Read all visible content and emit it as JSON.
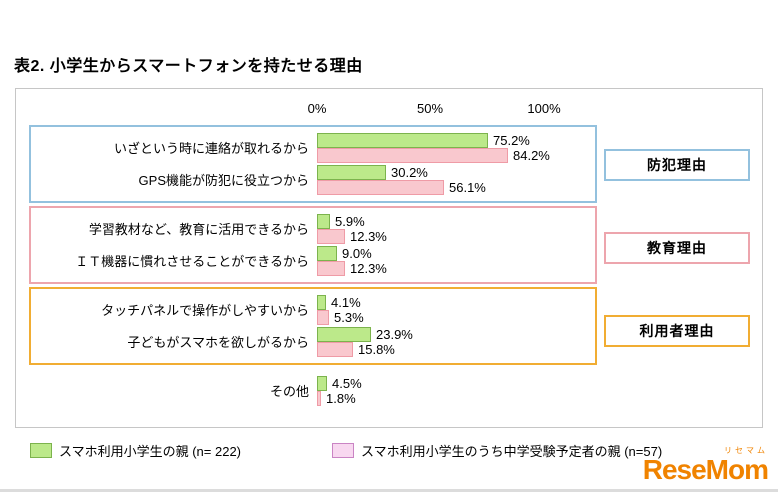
{
  "title": "表2. 小学生からスマートフォンを持たせる理由",
  "chart_data": {
    "type": "bar",
    "orientation": "horizontal",
    "title": "表2. 小学生からスマートフォンを持たせる理由",
    "x_axis": {
      "ticks": [
        "0%",
        "50%",
        "100%"
      ],
      "min": 0,
      "max": 100
    },
    "grid": false,
    "legend_position": "bottom",
    "categories": [
      "いざという時に連絡が取れるから",
      "GPS機能が防犯に役立つから",
      "学習教材など、教育に活用できるから",
      "ＩＴ機器に慣れさせることができるから",
      "タッチパネルで操作がしやすいから",
      "子どもがスマホを欲しがるから",
      "その他"
    ],
    "series": [
      {
        "name": "スマホ利用小学生の親 (n= 222)",
        "fill": "#bce98a",
        "border": "#7cb34d",
        "values": [
          75.2,
          30.2,
          5.9,
          9.0,
          4.1,
          23.9,
          4.5
        ]
      },
      {
        "name": "スマホ利用小学生のうち中学受験予定者の親 (n=57)",
        "fill": "#f9c8ce",
        "border": "#ef9ba6",
        "values": [
          84.2,
          56.1,
          12.3,
          12.3,
          5.3,
          15.8,
          1.8
        ]
      }
    ],
    "groups": [
      {
        "label": "防犯理由",
        "color": "#93c1de",
        "category_indexes": [
          0,
          1
        ]
      },
      {
        "label": "教育理由",
        "color": "#eda5ad",
        "category_indexes": [
          2,
          3
        ]
      },
      {
        "label": "利用者理由",
        "color": "#f1ad33",
        "category_indexes": [
          4,
          5
        ]
      }
    ]
  },
  "legend": {
    "items": [
      {
        "fill": "#bce98a",
        "border": "#7cb34d"
      },
      {
        "fill": "#f8d8f0",
        "border": "#ca84c4"
      }
    ]
  },
  "logo": {
    "kana": "リセマム",
    "text": "ReseMom",
    "color": "#f08300"
  }
}
